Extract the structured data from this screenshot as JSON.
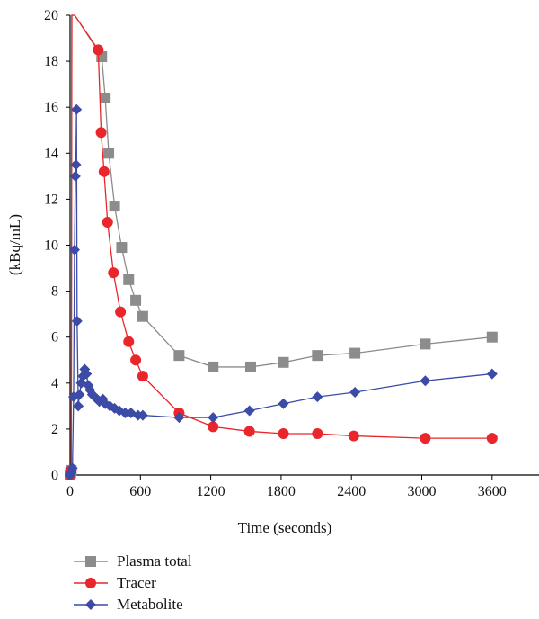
{
  "chart_data": {
    "type": "line",
    "xlabel": "Time (seconds)",
    "ylabel": "(kBq/mL)",
    "xlim": [
      0,
      4000
    ],
    "ylim": [
      0,
      20
    ],
    "xticks": [
      0,
      600,
      1200,
      1800,
      2400,
      3000,
      3600
    ],
    "yticks": [
      0,
      2,
      4,
      6,
      8,
      10,
      12,
      14,
      16,
      18,
      20
    ],
    "legend_position": "bottom-left",
    "series": [
      {
        "name": "Plasma total",
        "color": "#8c8c8c",
        "marker": "square",
        "x": [
          0,
          5,
          10,
          15,
          20,
          25,
          30,
          35,
          40,
          270,
          300,
          330,
          380,
          440,
          500,
          560,
          620,
          930,
          1220,
          1540,
          1820,
          2110,
          2430,
          3030,
          3600
        ],
        "y": [
          0,
          0.1,
          0.2,
          20,
          20,
          20,
          20,
          20,
          20,
          18.2,
          16.4,
          14.0,
          11.7,
          9.9,
          8.5,
          7.6,
          6.9,
          5.2,
          4.7,
          4.7,
          4.9,
          5.2,
          5.3,
          5.7,
          6.0
        ]
      },
      {
        "name": "Tracer",
        "color": "#e8262b",
        "marker": "circle",
        "x": [
          0,
          5,
          10,
          15,
          20,
          25,
          30,
          35,
          40,
          240,
          265,
          290,
          320,
          370,
          430,
          500,
          560,
          620,
          930,
          1220,
          1530,
          1820,
          2110,
          2420,
          3030,
          3600
        ],
        "y": [
          0,
          0.1,
          0.2,
          20,
          20,
          20,
          20,
          20,
          20,
          18.5,
          14.9,
          13.2,
          11.0,
          8.8,
          7.1,
          5.8,
          5.0,
          4.3,
          2.7,
          2.1,
          1.9,
          1.8,
          1.8,
          1.7,
          1.6,
          1.6
        ]
      },
      {
        "name": "Metabolite",
        "color": "#3b4ba6",
        "marker": "diamond",
        "x": [
          0,
          10,
          20,
          30,
          38,
          45,
          50,
          55,
          60,
          70,
          80,
          95,
          110,
          125,
          140,
          155,
          170,
          190,
          210,
          230,
          250,
          280,
          300,
          340,
          380,
          420,
          470,
          520,
          580,
          620,
          930,
          1220,
          1530,
          1820,
          2110,
          2430,
          3030,
          3600
        ],
        "y": [
          0,
          0.1,
          0.3,
          3.4,
          9.8,
          13.0,
          13.5,
          15.9,
          6.7,
          3.0,
          3.5,
          4.0,
          4.3,
          4.6,
          4.4,
          3.9,
          3.7,
          3.5,
          3.4,
          3.3,
          3.2,
          3.3,
          3.1,
          3.0,
          2.9,
          2.8,
          2.7,
          2.7,
          2.6,
          2.6,
          2.5,
          2.5,
          2.8,
          3.1,
          3.4,
          3.6,
          4.1,
          4.4
        ]
      }
    ]
  }
}
